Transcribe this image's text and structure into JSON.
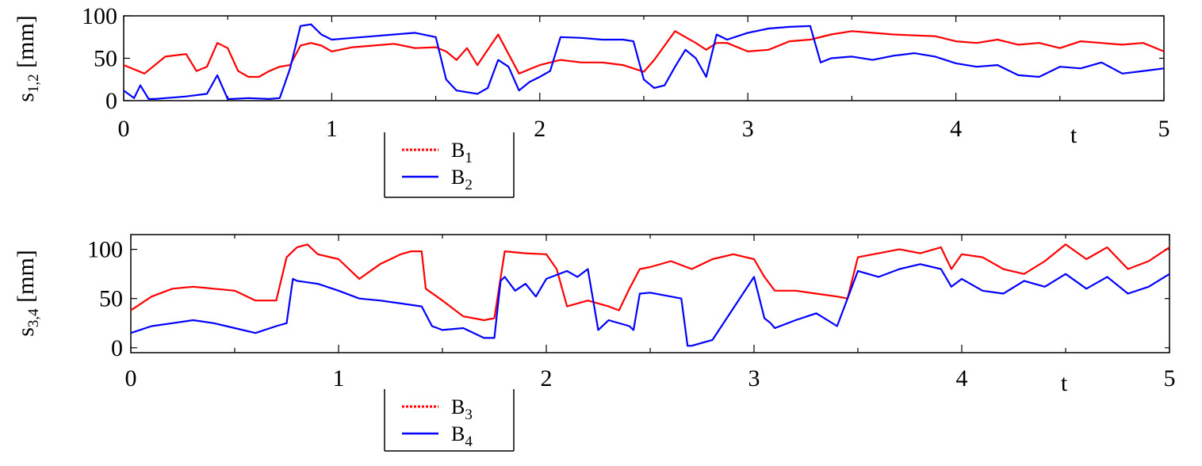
{
  "chart_data": [
    {
      "type": "line",
      "ylabel": {
        "base": "s",
        "sub": "1,2",
        "unit": "[mm]"
      },
      "xlabel": "t",
      "xlim": [
        0,
        5
      ],
      "ylim": [
        0,
        100
      ],
      "x_ticks": [
        "0",
        "1",
        "2",
        "3",
        "4",
        "5"
      ],
      "y_ticks": [
        "0",
        "50",
        "100"
      ],
      "legend": {
        "position": "below-left"
      },
      "series": [
        {
          "name": {
            "base": "B",
            "sub": "1"
          },
          "color": "#ff0000",
          "legend_style": "dotted",
          "x": [
            0,
            0.1,
            0.2,
            0.3,
            0.35,
            0.4,
            0.45,
            0.5,
            0.55,
            0.6,
            0.65,
            0.7,
            0.75,
            0.8,
            0.85,
            0.9,
            0.95,
            1.0,
            1.1,
            1.2,
            1.3,
            1.4,
            1.5,
            1.55,
            1.6,
            1.65,
            1.7,
            1.75,
            1.8,
            1.85,
            1.9,
            2.0,
            2.1,
            2.2,
            2.3,
            2.4,
            2.5,
            2.55,
            2.6,
            2.65,
            2.7,
            2.75,
            2.8,
            2.85,
            2.9,
            3.0,
            3.1,
            3.2,
            3.3,
            3.4,
            3.5,
            3.6,
            3.7,
            3.8,
            3.9,
            4.0,
            4.1,
            4.2,
            4.3,
            4.4,
            4.5,
            4.6,
            4.7,
            4.8,
            4.9,
            5.0
          ],
          "values": [
            42,
            32,
            52,
            55,
            35,
            40,
            68,
            62,
            35,
            28,
            28,
            35,
            40,
            42,
            65,
            68,
            65,
            58,
            63,
            65,
            67,
            62,
            63,
            58,
            48,
            62,
            42,
            60,
            78,
            55,
            32,
            42,
            48,
            45,
            45,
            42,
            34,
            48,
            65,
            82,
            75,
            68,
            60,
            68,
            68,
            58,
            60,
            70,
            72,
            78,
            82,
            80,
            78,
            77,
            76,
            70,
            68,
            72,
            66,
            68,
            62,
            70,
            68,
            66,
            68,
            58
          ]
        },
        {
          "name": {
            "base": "B",
            "sub": "2"
          },
          "color": "#0000ff",
          "legend_style": "solid",
          "x": [
            0,
            0.05,
            0.08,
            0.12,
            0.15,
            0.2,
            0.3,
            0.4,
            0.45,
            0.5,
            0.52,
            0.6,
            0.7,
            0.75,
            0.8,
            0.85,
            0.9,
            0.95,
            1.0,
            1.1,
            1.2,
            1.3,
            1.4,
            1.5,
            1.55,
            1.6,
            1.7,
            1.75,
            1.8,
            1.85,
            1.9,
            1.95,
            2.0,
            2.05,
            2.1,
            2.2,
            2.3,
            2.4,
            2.45,
            2.5,
            2.55,
            2.6,
            2.65,
            2.7,
            2.75,
            2.8,
            2.85,
            2.9,
            3.0,
            3.1,
            3.2,
            3.3,
            3.35,
            3.4,
            3.5,
            3.6,
            3.7,
            3.8,
            3.9,
            4.0,
            4.1,
            4.2,
            4.3,
            4.4,
            4.5,
            4.6,
            4.7,
            4.8,
            4.9,
            5.0
          ],
          "values": [
            12,
            3,
            18,
            2,
            2,
            3,
            5,
            8,
            30,
            2,
            2,
            3,
            2,
            3,
            38,
            88,
            90,
            78,
            72,
            74,
            76,
            78,
            80,
            75,
            25,
            12,
            8,
            15,
            48,
            40,
            12,
            22,
            28,
            35,
            75,
            74,
            72,
            72,
            70,
            25,
            15,
            18,
            40,
            60,
            50,
            28,
            78,
            72,
            80,
            85,
            87,
            88,
            45,
            50,
            52,
            48,
            53,
            56,
            52,
            44,
            40,
            42,
            30,
            28,
            40,
            38,
            45,
            32,
            35,
            38
          ]
        }
      ]
    },
    {
      "type": "line",
      "ylabel": {
        "base": "s",
        "sub": "3,4",
        "unit": "[mm]"
      },
      "xlabel": "t",
      "xlim": [
        0,
        5
      ],
      "ylim": [
        -5,
        115
      ],
      "x_ticks": [
        "0",
        "1",
        "2",
        "3",
        "4",
        "5"
      ],
      "y_ticks": [
        "0",
        "50",
        "100"
      ],
      "legend": {
        "position": "below-left"
      },
      "series": [
        {
          "name": {
            "base": "B",
            "sub": "3"
          },
          "color": "#ff0000",
          "legend_style": "dotted",
          "x": [
            0,
            0.1,
            0.2,
            0.3,
            0.4,
            0.5,
            0.6,
            0.7,
            0.75,
            0.8,
            0.85,
            0.9,
            1.0,
            1.1,
            1.2,
            1.3,
            1.35,
            1.4,
            1.42,
            1.5,
            1.6,
            1.7,
            1.75,
            1.8,
            1.85,
            1.9,
            2.0,
            2.05,
            2.1,
            2.2,
            2.3,
            2.35,
            2.4,
            2.45,
            2.5,
            2.6,
            2.7,
            2.8,
            2.9,
            3.0,
            3.05,
            3.1,
            3.2,
            3.3,
            3.4,
            3.45,
            3.5,
            3.6,
            3.7,
            3.8,
            3.9,
            3.95,
            4.0,
            4.1,
            4.2,
            4.3,
            4.4,
            4.5,
            4.6,
            4.7,
            4.8,
            4.9,
            5.0
          ],
          "values": [
            38,
            52,
            60,
            62,
            60,
            58,
            48,
            48,
            92,
            102,
            105,
            95,
            90,
            70,
            85,
            95,
            98,
            98,
            60,
            48,
            32,
            28,
            30,
            98,
            97,
            96,
            95,
            80,
            42,
            48,
            42,
            38,
            60,
            80,
            82,
            88,
            80,
            90,
            95,
            90,
            72,
            58,
            58,
            55,
            52,
            50,
            92,
            96,
            100,
            96,
            102,
            80,
            95,
            92,
            80,
            75,
            88,
            105,
            90,
            102,
            80,
            88,
            102
          ]
        },
        {
          "name": {
            "base": "B",
            "sub": "4"
          },
          "color": "#0000ff",
          "legend_style": "solid",
          "x": [
            0,
            0.1,
            0.2,
            0.3,
            0.4,
            0.5,
            0.6,
            0.7,
            0.75,
            0.78,
            0.8,
            0.9,
            1.0,
            1.1,
            1.2,
            1.3,
            1.4,
            1.45,
            1.5,
            1.6,
            1.7,
            1.75,
            1.78,
            1.8,
            1.85,
            1.9,
            1.95,
            2.0,
            2.1,
            2.15,
            2.2,
            2.25,
            2.3,
            2.4,
            2.42,
            2.45,
            2.5,
            2.6,
            2.65,
            2.68,
            2.7,
            2.8,
            2.9,
            3.0,
            3.05,
            3.08,
            3.1,
            3.2,
            3.3,
            3.4,
            3.45,
            3.5,
            3.6,
            3.7,
            3.8,
            3.9,
            3.95,
            4.0,
            4.1,
            4.2,
            4.3,
            4.4,
            4.5,
            4.6,
            4.7,
            4.8,
            4.9,
            5.0
          ],
          "values": [
            15,
            22,
            25,
            28,
            25,
            20,
            15,
            22,
            25,
            70,
            68,
            65,
            58,
            50,
            48,
            45,
            42,
            22,
            18,
            20,
            10,
            10,
            68,
            72,
            58,
            65,
            52,
            70,
            78,
            72,
            80,
            18,
            28,
            22,
            18,
            55,
            56,
            52,
            50,
            2,
            2,
            8,
            40,
            72,
            30,
            25,
            20,
            28,
            35,
            22,
            50,
            78,
            72,
            80,
            85,
            80,
            62,
            70,
            58,
            55,
            68,
            62,
            75,
            60,
            72,
            55,
            62,
            75
          ]
        }
      ]
    }
  ]
}
